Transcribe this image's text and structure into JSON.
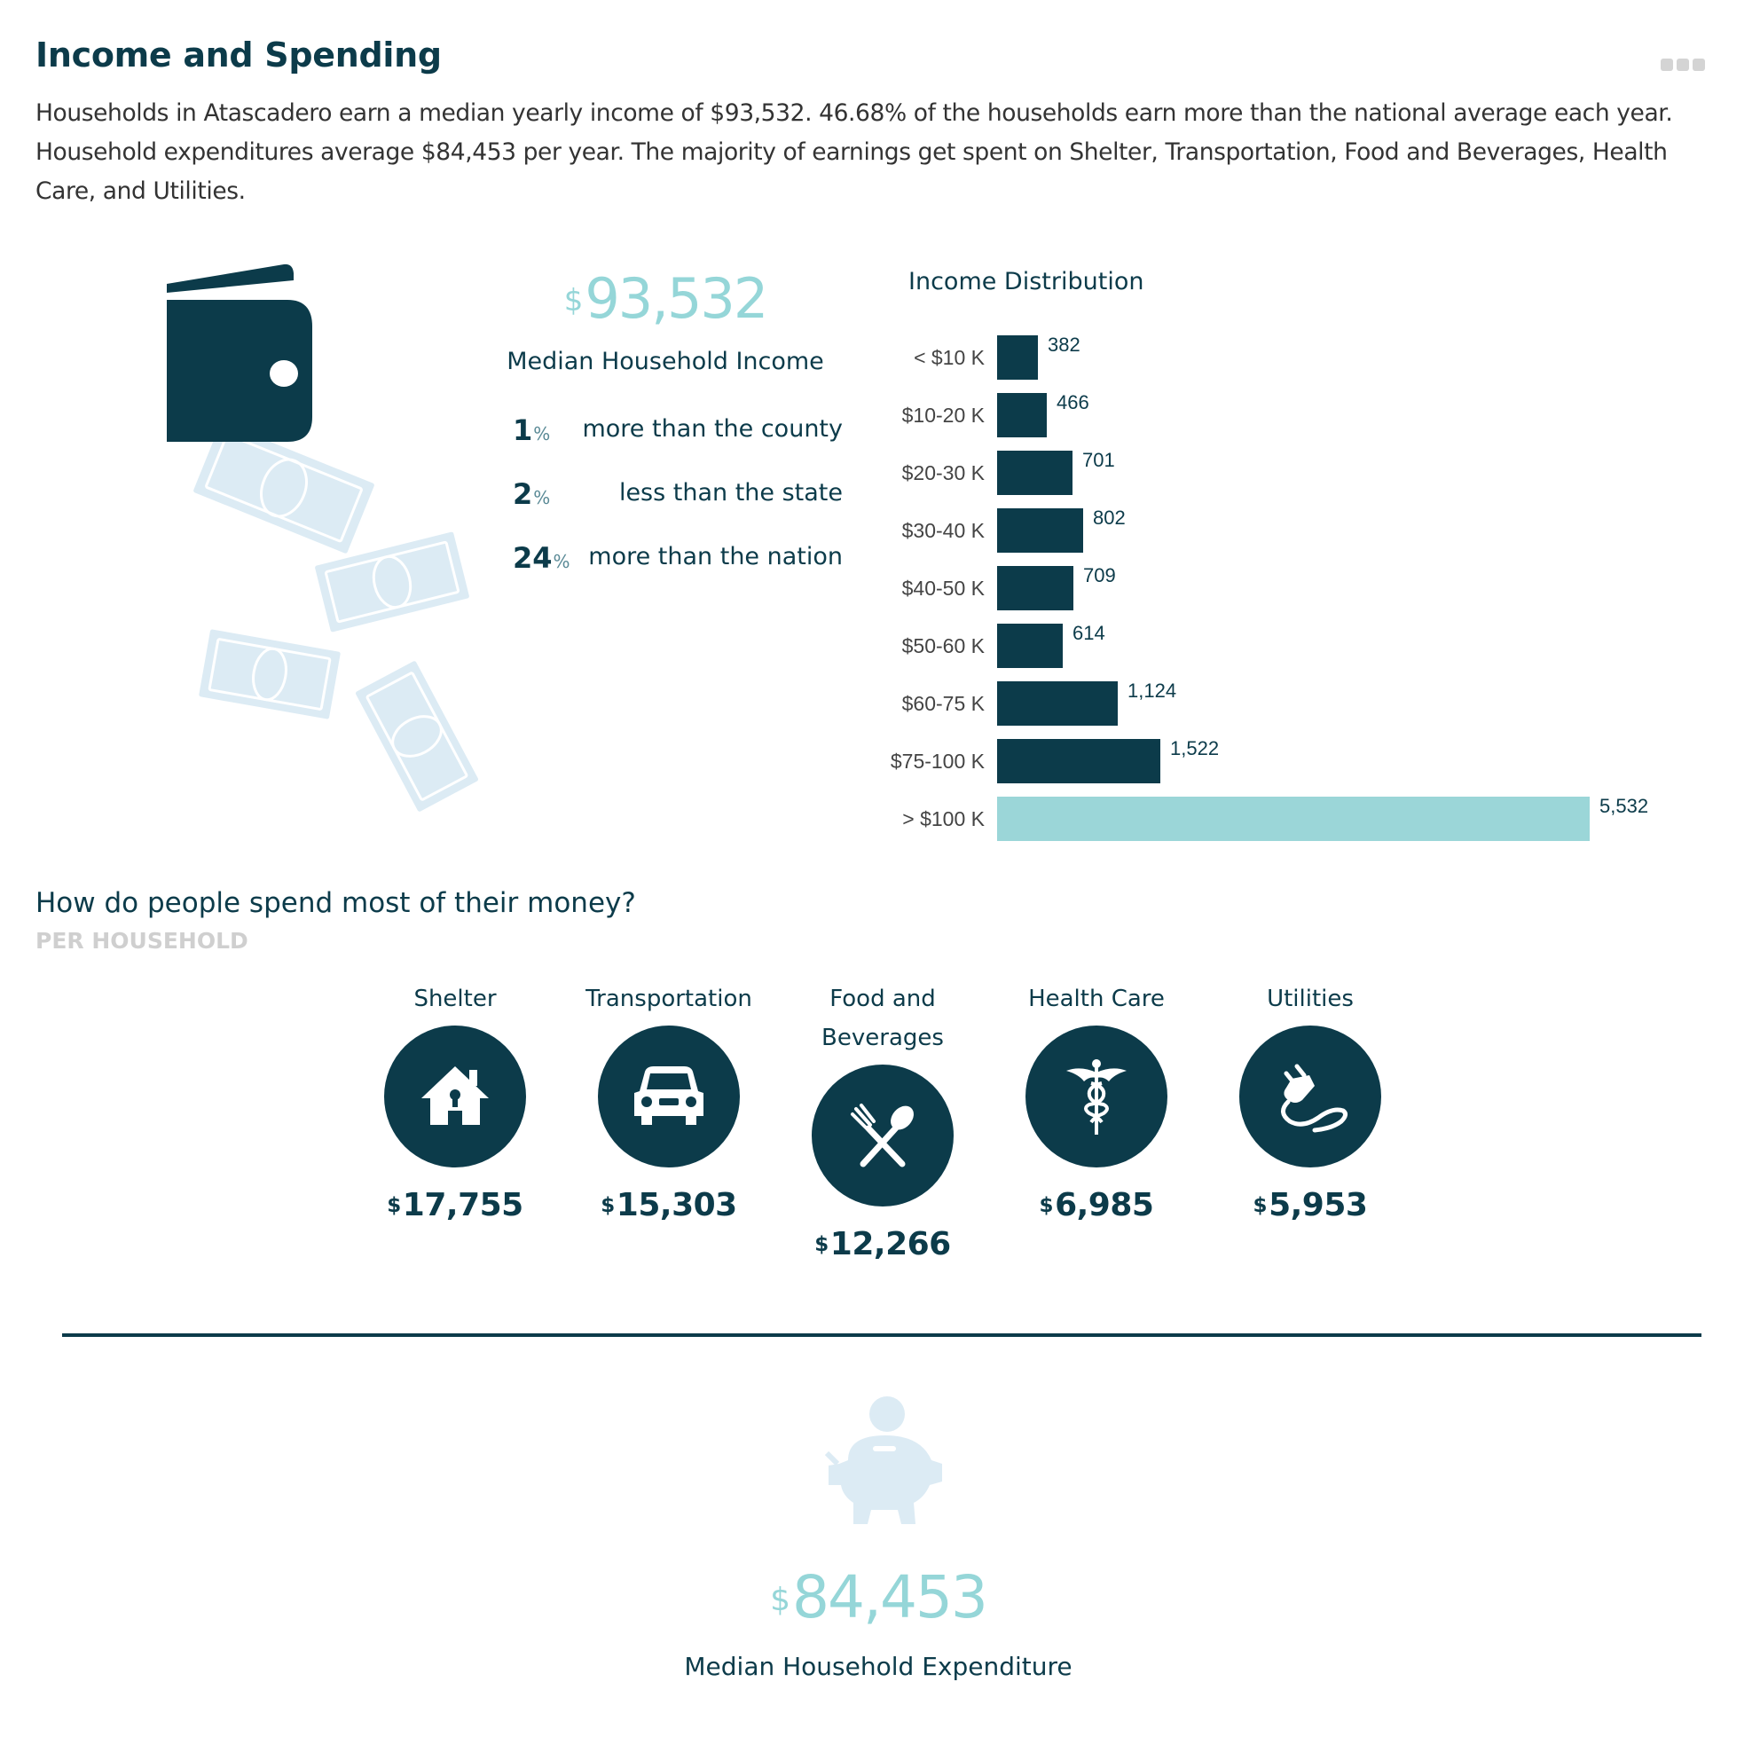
{
  "header": {
    "title": "Income and Spending",
    "intro": "Households in Atascadero earn a median yearly income of $93,532. 46.68% of the households earn more than the national average each year. Household expenditures average $84,453 per year. The majority of earnings get spent on Shelter, Transportation, Food and Beverages, Health Care, and Utilities."
  },
  "income": {
    "currency": "$",
    "median": "93,532",
    "label": "Median Household Income",
    "comparisons": [
      {
        "pct": "1",
        "unit": "%",
        "text": "more than the county"
      },
      {
        "pct": "2",
        "unit": "%",
        "text": "less than the state"
      },
      {
        "pct": "24",
        "unit": "%",
        "text": "more than the nation"
      }
    ]
  },
  "chart_data": {
    "type": "bar",
    "orientation": "horizontal",
    "title": "Income Distribution",
    "categories": [
      "< $10 K",
      "$10-20 K",
      "$20-30 K",
      "$30-40 K",
      "$40-50 K",
      "$50-60 K",
      "$60-75 K",
      "$75-100 K",
      "> $100 K"
    ],
    "values": [
      382,
      466,
      701,
      802,
      709,
      614,
      1124,
      1522,
      5532
    ],
    "value_labels": [
      "382",
      "466",
      "701",
      "802",
      "709",
      "614",
      "1,124",
      "1,522",
      "5,532"
    ],
    "highlight_index": 8,
    "colors": {
      "bar": "#0c3b4a",
      "highlight": "#9bd6d8"
    }
  },
  "spending": {
    "question": "How do people spend most of their money?",
    "subtitle": "PER HOUSEHOLD",
    "currency": "$",
    "categories": [
      {
        "label": "Shelter",
        "icon": "house-icon",
        "amount": "17,755"
      },
      {
        "label": "Transportation",
        "icon": "car-icon",
        "amount": "15,303"
      },
      {
        "label_line1": "Food and",
        "label_line2": "Beverages",
        "icon": "fork-spoon-icon",
        "amount": "12,266"
      },
      {
        "label": "Health Care",
        "icon": "caduceus-icon",
        "amount": "6,985"
      },
      {
        "label": "Utilities",
        "icon": "plug-icon",
        "amount": "5,953"
      }
    ]
  },
  "expenditure": {
    "currency": "$",
    "median": "84,453",
    "label": "Median Household Expenditure"
  },
  "colors": {
    "primary": "#0c3b4a",
    "accent": "#95d6d8",
    "light_money": "#dcebf4",
    "muted": "#cfcfcf"
  }
}
